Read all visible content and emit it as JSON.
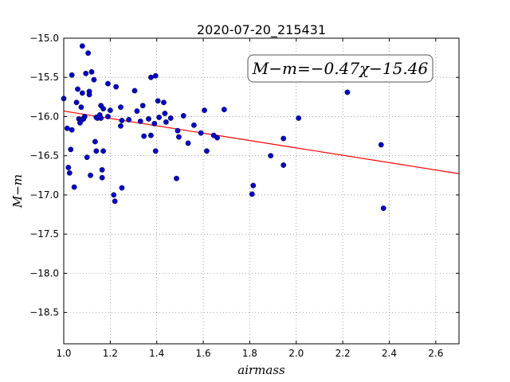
{
  "chart_data": {
    "type": "scatter",
    "title": "2020-07-20_215431",
    "xlabel": "airmass",
    "ylabel": "M−m",
    "annotation": "M−m=−0.47χ−15.46",
    "xlim": [
      1.0,
      2.7
    ],
    "ylim": [
      -15.0,
      -18.9
    ],
    "y_inverted": true,
    "grid": true,
    "x_ticks": [
      "1.0",
      "1.2",
      "1.4",
      "1.6",
      "1.8",
      "2.0",
      "2.2",
      "2.4",
      "2.6"
    ],
    "y_ticks": [
      "−15.0",
      "−15.5",
      "−16.0",
      "−16.5",
      "−17.0",
      "−17.5",
      "−18.0",
      "−18.5"
    ],
    "fit": {
      "slope": -0.47,
      "intercept": -15.46,
      "color": "#ff0000"
    },
    "marker_color": "#0000cc",
    "series": [
      {
        "x": [
          1.0,
          1.015,
          1.02,
          1.025,
          1.03,
          1.035,
          1.035,
          1.045,
          1.055,
          1.06,
          1.065,
          1.07,
          1.075,
          1.075,
          1.08,
          1.08,
          1.085,
          1.085,
          1.09,
          1.095,
          1.1,
          1.105,
          1.11,
          1.11,
          1.115,
          1.12,
          1.13,
          1.135,
          1.14,
          1.14,
          1.145,
          1.155,
          1.16,
          1.16,
          1.165,
          1.165,
          1.17,
          1.17,
          1.19,
          1.19,
          1.2,
          1.215,
          1.22,
          1.225,
          1.245,
          1.245,
          1.25,
          1.25,
          1.28,
          1.305,
          1.315,
          1.33,
          1.34,
          1.345,
          1.365,
          1.375,
          1.375,
          1.39,
          1.395,
          1.395,
          1.405,
          1.41,
          1.43,
          1.435,
          1.44,
          1.46,
          1.485,
          1.49,
          1.495,
          1.515,
          1.535,
          1.56,
          1.59,
          1.605,
          1.615,
          1.645,
          1.66,
          1.69,
          1.81,
          1.815,
          1.89,
          1.945,
          1.945,
          2.01,
          2.22,
          2.365,
          2.375
        ],
        "y": [
          -15.77,
          -16.15,
          -16.65,
          -16.72,
          -16.42,
          -15.47,
          -16.17,
          -16.9,
          -15.82,
          -15.65,
          -16.03,
          -16.08,
          -16.05,
          -15.88,
          -15.7,
          -15.1,
          -16.02,
          -16.03,
          -16.0,
          -15.45,
          -16.52,
          -15.19,
          -15.68,
          -15.72,
          -16.75,
          -15.43,
          -15.53,
          -16.32,
          -16.01,
          -16.44,
          -16.02,
          -15.98,
          -15.86,
          -16.02,
          -16.68,
          -16.78,
          -16.44,
          -15.9,
          -15.58,
          -16.0,
          -15.92,
          -17.0,
          -17.08,
          -15.62,
          -16.12,
          -15.88,
          -16.91,
          -16.05,
          -16.04,
          -15.67,
          -15.93,
          -16.06,
          -15.86,
          -16.25,
          -16.03,
          -15.5,
          -16.24,
          -16.09,
          -15.48,
          -16.44,
          -15.8,
          -16.01,
          -15.82,
          -15.96,
          -16.07,
          -16.02,
          -16.79,
          -16.18,
          -16.26,
          -15.99,
          -16.34,
          -16.11,
          -16.21,
          -15.92,
          -16.44,
          -16.24,
          -16.27,
          -15.91,
          -16.99,
          -16.88,
          -16.5,
          -16.28,
          -16.62,
          -16.02,
          -15.69,
          -16.36,
          -17.17
        ]
      }
    ]
  }
}
